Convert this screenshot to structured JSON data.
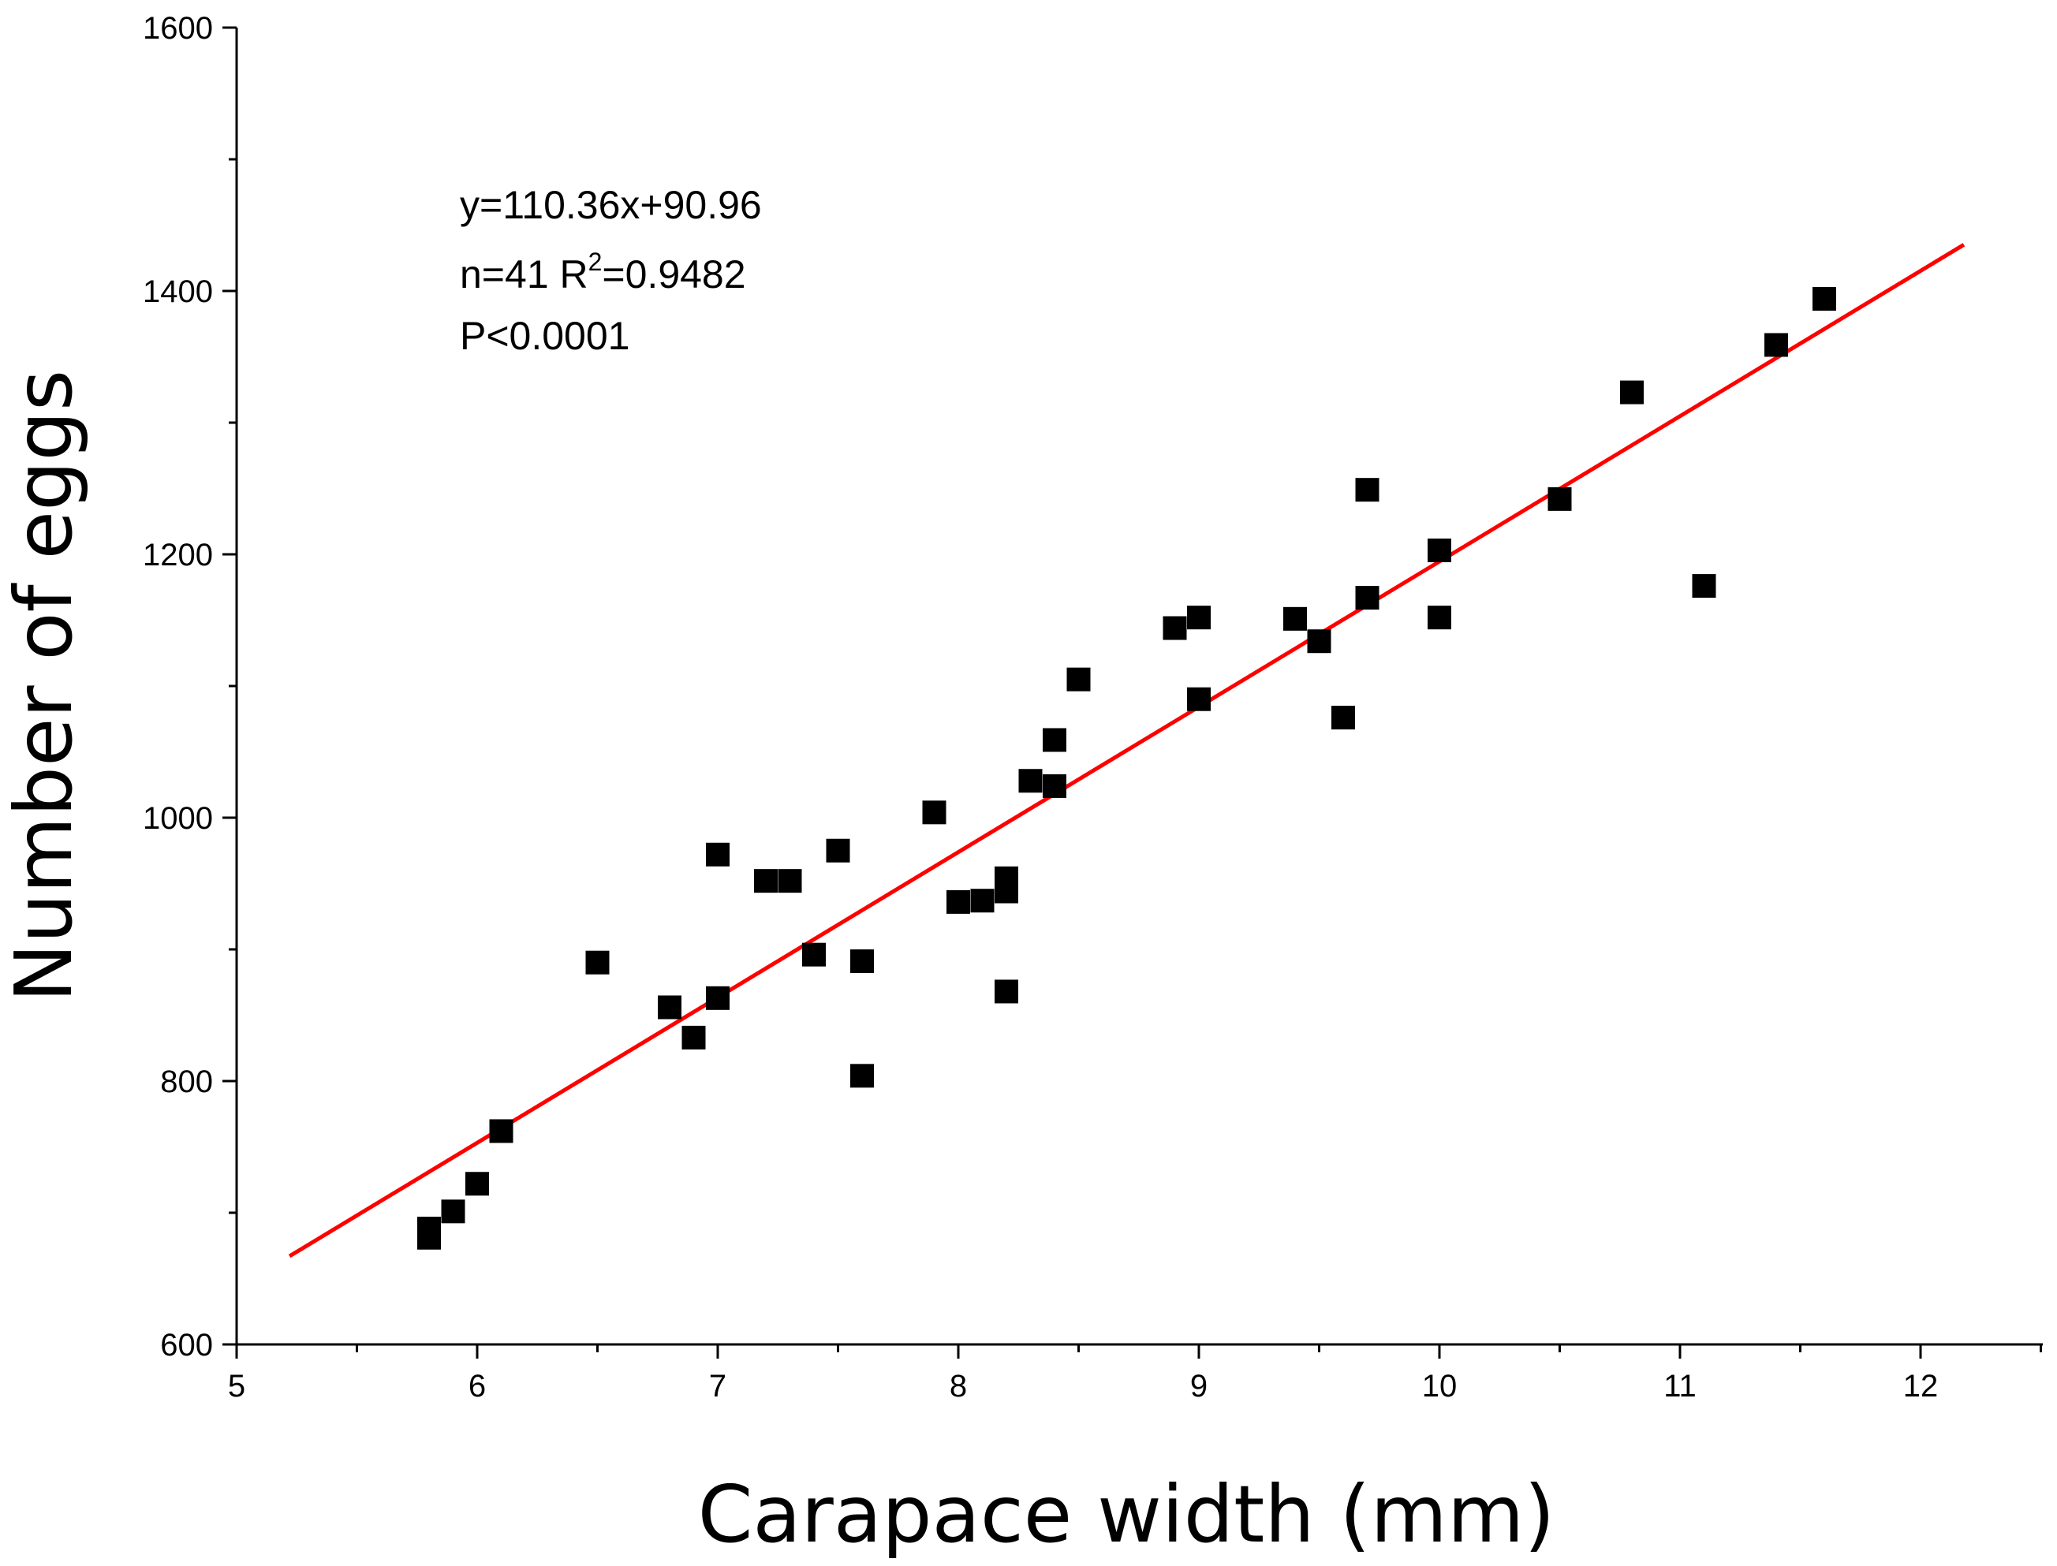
{
  "chart_data": {
    "type": "scatter",
    "title": "",
    "xlabel": "Carapace width (mm)",
    "ylabel": "Number of eggs",
    "xlim": [
      5,
      12.5
    ],
    "ylim": [
      600,
      1600
    ],
    "xticks": [
      5,
      6,
      7,
      8,
      9,
      10,
      11,
      12
    ],
    "yticks": [
      600,
      800,
      1000,
      1200,
      1400,
      1600
    ],
    "grid": false,
    "legend": "none",
    "marker_color": "#000000",
    "fit_color": "#ff0000",
    "series": [
      {
        "marker": "square",
        "points": [
          {
            "x": 5.8,
            "y": 681
          },
          {
            "x": 5.8,
            "y": 688
          },
          {
            "x": 5.9,
            "y": 701
          },
          {
            "x": 6.0,
            "y": 722
          },
          {
            "x": 6.1,
            "y": 762
          },
          {
            "x": 6.5,
            "y": 890
          },
          {
            "x": 6.8,
            "y": 856
          },
          {
            "x": 6.9,
            "y": 833
          },
          {
            "x": 7.0,
            "y": 863
          },
          {
            "x": 7.0,
            "y": 972
          },
          {
            "x": 7.2,
            "y": 952
          },
          {
            "x": 7.3,
            "y": 952
          },
          {
            "x": 7.4,
            "y": 896
          },
          {
            "x": 7.5,
            "y": 975
          },
          {
            "x": 7.6,
            "y": 891
          },
          {
            "x": 7.6,
            "y": 804
          },
          {
            "x": 7.9,
            "y": 1004
          },
          {
            "x": 8.0,
            "y": 936
          },
          {
            "x": 8.1,
            "y": 937
          },
          {
            "x": 8.2,
            "y": 944
          },
          {
            "x": 8.2,
            "y": 954
          },
          {
            "x": 8.2,
            "y": 868
          },
          {
            "x": 8.3,
            "y": 1028
          },
          {
            "x": 8.4,
            "y": 1024
          },
          {
            "x": 8.4,
            "y": 1059
          },
          {
            "x": 8.5,
            "y": 1105
          },
          {
            "x": 8.9,
            "y": 1144
          },
          {
            "x": 9.0,
            "y": 1152
          },
          {
            "x": 9.0,
            "y": 1090
          },
          {
            "x": 9.4,
            "y": 1151
          },
          {
            "x": 9.5,
            "y": 1134
          },
          {
            "x": 9.6,
            "y": 1076
          },
          {
            "x": 9.7,
            "y": 1249
          },
          {
            "x": 9.7,
            "y": 1167
          },
          {
            "x": 10.0,
            "y": 1203
          },
          {
            "x": 10.0,
            "y": 1152
          },
          {
            "x": 10.5,
            "y": 1242
          },
          {
            "x": 10.8,
            "y": 1323
          },
          {
            "x": 11.1,
            "y": 1176
          },
          {
            "x": 11.4,
            "y": 1359
          },
          {
            "x": 11.6,
            "y": 1394
          }
        ]
      }
    ],
    "fit_line": {
      "slope": 110.36,
      "intercept": 90.96,
      "x_range": [
        5.22,
        12.18
      ]
    },
    "annotations": {
      "equation": "y=110.36x+90.96",
      "stats_prefix": "n=41 R",
      "stats_sup": "2",
      "stats_suffix": "=0.9482",
      "pvalue": "P<0.0001"
    }
  }
}
